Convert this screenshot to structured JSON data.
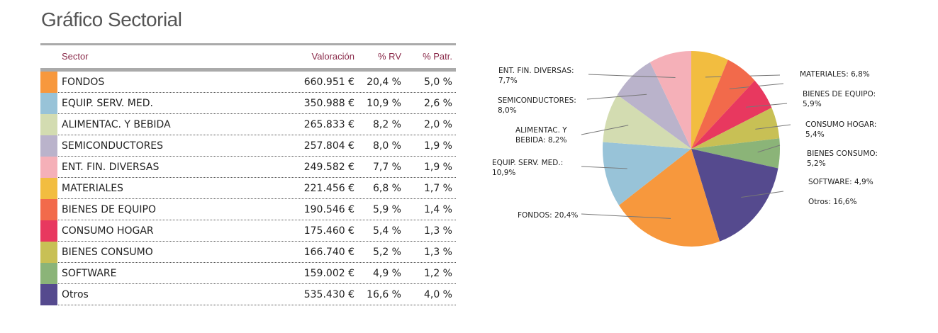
{
  "title": "Gráfico Sectorial",
  "table": {
    "headers": [
      "Sector",
      "Valoración",
      "% RV",
      "% Patr."
    ],
    "rows": [
      {
        "sector": "FONDOS",
        "valoracion": "660.951 €",
        "rv": "20,4 %",
        "patr": "5,0 %",
        "color": "#f7983d"
      },
      {
        "sector": "EQUIP. SERV. MED.",
        "valoracion": "350.988 €",
        "rv": "10,9 %",
        "patr": "2,6 %",
        "color": "#98c3d8"
      },
      {
        "sector": "ALIMENTAC. Y BEBIDA",
        "valoracion": "265.833 €",
        "rv": "8,2 %",
        "patr": "2,0 %",
        "color": "#d3dcb1"
      },
      {
        "sector": "SEMICONDUCTORES",
        "valoracion": "257.804 €",
        "rv": "8,0 %",
        "patr": "1,9 %",
        "color": "#bab3cb"
      },
      {
        "sector": "ENT. FIN. DIVERSAS",
        "valoracion": "249.582 €",
        "rv": "7,7 %",
        "patr": "1,9 %",
        "color": "#f5b0b8"
      },
      {
        "sector": "MATERIALES",
        "valoracion": "221.456 €",
        "rv": "6,8 %",
        "patr": "1,7 %",
        "color": "#f2bd40"
      },
      {
        "sector": "BIENES DE EQUIPO",
        "valoracion": "190.546 €",
        "rv": "5,9 %",
        "patr": "1,4 %",
        "color": "#f26a4b"
      },
      {
        "sector": "CONSUMO HOGAR",
        "valoracion": "175.460 €",
        "rv": "5,4 %",
        "patr": "1,3 %",
        "color": "#e8385f"
      },
      {
        "sector": "BIENES CONSUMO",
        "valoracion": "166.740 €",
        "rv": "5,2 %",
        "patr": "1,3 %",
        "color": "#c8c055"
      },
      {
        "sector": "SOFTWARE",
        "valoracion": "159.002 €",
        "rv": "4,9 %",
        "patr": "1,2 %",
        "color": "#8bb478"
      },
      {
        "sector": "Otros",
        "valoracion": "535.430 €",
        "rv": "16,6 %",
        "patr": "4,0 %",
        "color": "#554a8e"
      }
    ]
  },
  "chart_data": {
    "type": "pie",
    "slices": [
      {
        "label": "MATERIALES: 6,8%",
        "value": 6.8,
        "color": "#f2bd40"
      },
      {
        "label": "BIENES DE EQUIPO: 5,9%",
        "value": 5.9,
        "color": "#f26a4b"
      },
      {
        "label": "CONSUMO HOGAR: 5,4%",
        "value": 5.4,
        "color": "#e8385f"
      },
      {
        "label": "BIENES CONSUMO: 5,2%",
        "value": 5.2,
        "color": "#c8c055"
      },
      {
        "label": "SOFTWARE: 4,9%",
        "value": 4.9,
        "color": "#8bb478"
      },
      {
        "label": "Otros: 16,6%",
        "value": 16.6,
        "color": "#554a8e"
      },
      {
        "label": "FONDOS: 20,4%",
        "value": 20.4,
        "color": "#f7983d"
      },
      {
        "label": "EQUIP. SERV. MED.: 10,9%",
        "value": 10.9,
        "color": "#98c3d8"
      },
      {
        "label": "ALIMENTAC. Y BEBIDA: 8,2%",
        "value": 8.2,
        "color": "#d3dcb1"
      },
      {
        "label": "SEMICONDUCTORES: 8,0%",
        "value": 8.0,
        "color": "#bab3cb"
      },
      {
        "label": "ENT. FIN. DIVERSAS: 7,7%",
        "value": 7.7,
        "color": "#f5b0b8"
      }
    ]
  }
}
